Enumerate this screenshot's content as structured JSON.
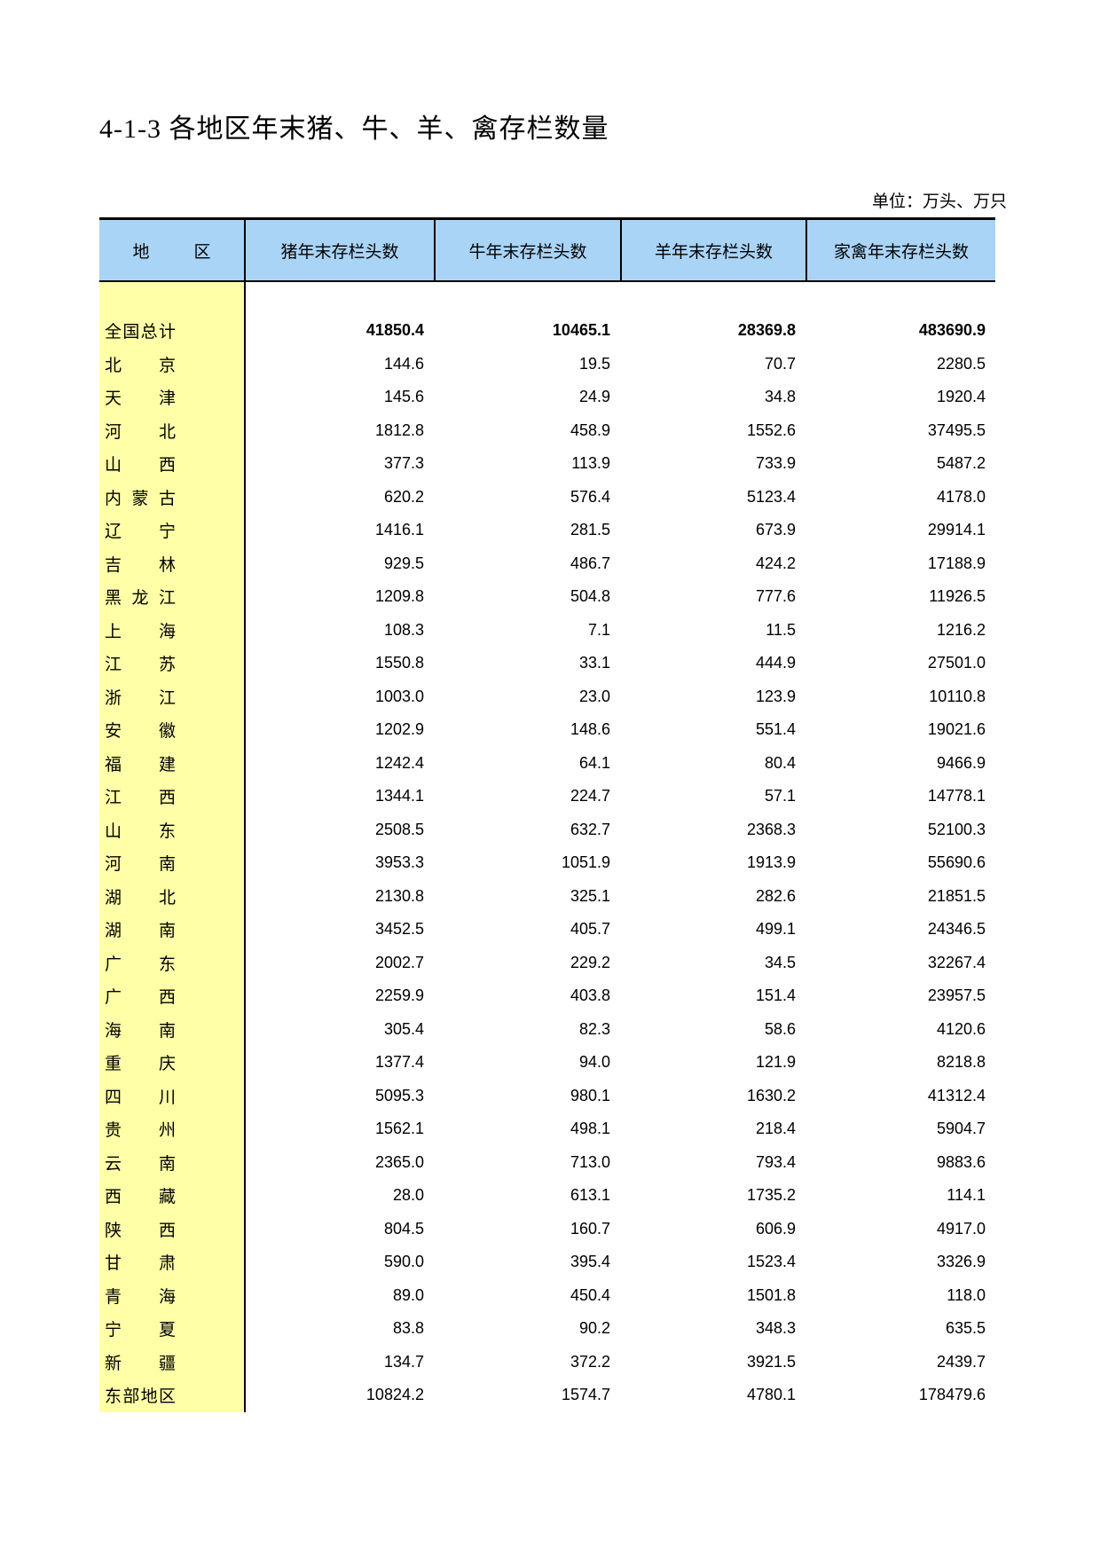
{
  "page": {
    "title": "4-1-3  各地区年末猪、牛、羊、禽存栏数量",
    "unit_note": "单位：万头、万只"
  },
  "colors": {
    "header_bg": "#aad4f6",
    "region_bg": "#ffffa7",
    "border": "#000000"
  },
  "table": {
    "columns": [
      "地区",
      "猪年末存栏头数",
      "牛年末存栏头数",
      "羊年末存栏头数",
      "家禽年末存栏头数"
    ],
    "rows": [
      {
        "region": "全国总计",
        "pig": "41850.4",
        "cattle": "10465.1",
        "sheep": "28369.8",
        "poultry": "483690.9",
        "bold": true
      },
      {
        "region": "北京",
        "pig": "144.6",
        "cattle": "19.5",
        "sheep": "70.7",
        "poultry": "2280.5",
        "bold": false
      },
      {
        "region": "天津",
        "pig": "145.6",
        "cattle": "24.9",
        "sheep": "34.8",
        "poultry": "1920.4",
        "bold": false
      },
      {
        "region": "河北",
        "pig": "1812.8",
        "cattle": "458.9",
        "sheep": "1552.6",
        "poultry": "37495.5",
        "bold": false
      },
      {
        "region": "山西",
        "pig": "377.3",
        "cattle": "113.9",
        "sheep": "733.9",
        "poultry": "5487.2",
        "bold": false
      },
      {
        "region": "内蒙古",
        "pig": "620.2",
        "cattle": "576.4",
        "sheep": "5123.4",
        "poultry": "4178.0",
        "bold": false
      },
      {
        "region": "辽宁",
        "pig": "1416.1",
        "cattle": "281.5",
        "sheep": "673.9",
        "poultry": "29914.1",
        "bold": false
      },
      {
        "region": "吉林",
        "pig": "929.5",
        "cattle": "486.7",
        "sheep": "424.2",
        "poultry": "17188.9",
        "bold": false
      },
      {
        "region": "黑龙江",
        "pig": "1209.8",
        "cattle": "504.8",
        "sheep": "777.6",
        "poultry": "11926.5",
        "bold": false
      },
      {
        "region": "上海",
        "pig": "108.3",
        "cattle": "7.1",
        "sheep": "11.5",
        "poultry": "1216.2",
        "bold": false
      },
      {
        "region": "江苏",
        "pig": "1550.8",
        "cattle": "33.1",
        "sheep": "444.9",
        "poultry": "27501.0",
        "bold": false
      },
      {
        "region": "浙江",
        "pig": "1003.0",
        "cattle": "23.0",
        "sheep": "123.9",
        "poultry": "10110.8",
        "bold": false
      },
      {
        "region": "安徽",
        "pig": "1202.9",
        "cattle": "148.6",
        "sheep": "551.4",
        "poultry": "19021.6",
        "bold": false
      },
      {
        "region": "福建",
        "pig": "1242.4",
        "cattle": "64.1",
        "sheep": "80.4",
        "poultry": "9466.9",
        "bold": false
      },
      {
        "region": "江西",
        "pig": "1344.1",
        "cattle": "224.7",
        "sheep": "57.1",
        "poultry": "14778.1",
        "bold": false
      },
      {
        "region": "山东",
        "pig": "2508.5",
        "cattle": "632.7",
        "sheep": "2368.3",
        "poultry": "52100.3",
        "bold": false
      },
      {
        "region": "河南",
        "pig": "3953.3",
        "cattle": "1051.9",
        "sheep": "1913.9",
        "poultry": "55690.6",
        "bold": false
      },
      {
        "region": "湖北",
        "pig": "2130.8",
        "cattle": "325.1",
        "sheep": "282.6",
        "poultry": "21851.5",
        "bold": false
      },
      {
        "region": "湖南",
        "pig": "3452.5",
        "cattle": "405.7",
        "sheep": "499.1",
        "poultry": "24346.5",
        "bold": false
      },
      {
        "region": "广东",
        "pig": "2002.7",
        "cattle": "229.2",
        "sheep": "34.5",
        "poultry": "32267.4",
        "bold": false
      },
      {
        "region": "广西",
        "pig": "2259.9",
        "cattle": "403.8",
        "sheep": "151.4",
        "poultry": "23957.5",
        "bold": false
      },
      {
        "region": "海南",
        "pig": "305.4",
        "cattle": "82.3",
        "sheep": "58.6",
        "poultry": "4120.6",
        "bold": false
      },
      {
        "region": "重庆",
        "pig": "1377.4",
        "cattle": "94.0",
        "sheep": "121.9",
        "poultry": "8218.8",
        "bold": false
      },
      {
        "region": "四川",
        "pig": "5095.3",
        "cattle": "980.1",
        "sheep": "1630.2",
        "poultry": "41312.4",
        "bold": false
      },
      {
        "region": "贵州",
        "pig": "1562.1",
        "cattle": "498.1",
        "sheep": "218.4",
        "poultry": "5904.7",
        "bold": false
      },
      {
        "region": "云南",
        "pig": "2365.0",
        "cattle": "713.0",
        "sheep": "793.4",
        "poultry": "9883.6",
        "bold": false
      },
      {
        "region": "西藏",
        "pig": "28.0",
        "cattle": "613.1",
        "sheep": "1735.2",
        "poultry": "114.1",
        "bold": false
      },
      {
        "region": "陕西",
        "pig": "804.5",
        "cattle": "160.7",
        "sheep": "606.9",
        "poultry": "4917.0",
        "bold": false
      },
      {
        "region": "甘肃",
        "pig": "590.0",
        "cattle": "395.4",
        "sheep": "1523.4",
        "poultry": "3326.9",
        "bold": false
      },
      {
        "region": "青海",
        "pig": "89.0",
        "cattle": "450.4",
        "sheep": "1501.8",
        "poultry": "118.0",
        "bold": false
      },
      {
        "region": "宁夏",
        "pig": "83.8",
        "cattle": "90.2",
        "sheep": "348.3",
        "poultry": "635.5",
        "bold": false
      },
      {
        "region": "新疆",
        "pig": "134.7",
        "cattle": "372.2",
        "sheep": "3921.5",
        "poultry": "2439.7",
        "bold": false
      },
      {
        "region": "东部地区",
        "pig": "10824.2",
        "cattle": "1574.7",
        "sheep": "4780.1",
        "poultry": "178479.6",
        "bold": false
      }
    ]
  }
}
